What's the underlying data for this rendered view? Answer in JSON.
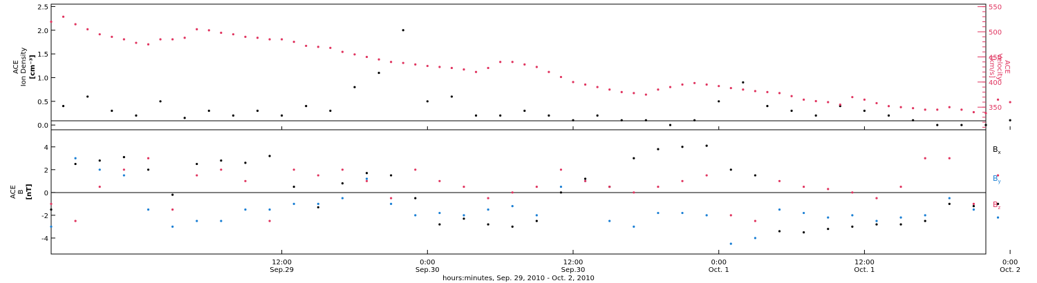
{
  "colors": {
    "black": "#000000",
    "velocity": "#e0345f",
    "by": "#1a7fd4",
    "bz": "#e0345f"
  },
  "shared": {
    "xlabel": "hours:minutes, Sep. 29, 2010 - Oct. 2, 2010",
    "x_range_hours": [
      -19,
      58
    ],
    "ticks": [
      {
        "hour": 0,
        "time": "12:00",
        "date": "Sep.29"
      },
      {
        "hour": 12,
        "time": "0:00",
        "date": "Sep.30"
      },
      {
        "hour": 24,
        "time": "12:00",
        "date": "Sep.30"
      },
      {
        "hour": 36,
        "time": "0:00",
        "date": "Oct. 1"
      },
      {
        "hour": 48,
        "time": "12:00",
        "date": "Oct. 1"
      },
      {
        "hour": 60,
        "time": "0:00",
        "date": "Oct. 2"
      }
    ]
  },
  "chart_data": [
    {
      "type": "scatter",
      "title": "",
      "ylabel_left": [
        "ACE",
        "Ion Density",
        "[cm⁻³]"
      ],
      "ylabel_right": [
        "ACE",
        "Velocity",
        "[km/s]"
      ],
      "ylim_left": [
        -0.1,
        2.55
      ],
      "ylim_right": [
        305,
        555
      ],
      "yticks_left": [
        "0.0",
        "0.5",
        "1.0",
        "1.5",
        "2.0",
        "2.5"
      ],
      "yticks_right": [
        "350",
        "400",
        "450",
        "500",
        "550"
      ],
      "series": [
        {
          "name": "",
          "axis": "left",
          "x": [
            -18,
            -16,
            -14,
            -12,
            -10,
            -8,
            -6,
            -4,
            -2,
            0,
            2,
            4,
            6,
            8,
            10,
            12,
            14,
            16,
            18,
            20,
            22,
            24,
            26,
            28,
            30,
            32,
            34,
            36,
            38,
            40,
            42,
            44,
            46,
            48,
            50,
            52,
            54,
            56,
            58,
            60
          ],
          "y": [
            0.4,
            0.6,
            0.3,
            0.2,
            0.5,
            0.15,
            0.3,
            0.2,
            0.3,
            0.2,
            0.4,
            0.3,
            0.8,
            1.1,
            2.0,
            0.5,
            0.6,
            0.2,
            0.2,
            0.3,
            0.2,
            0.1,
            0.2,
            0.1,
            0.1,
            0.0,
            0.1,
            0.5,
            0.9,
            0.4,
            0.3,
            0.2,
            0.4,
            0.3,
            0.2,
            0.1,
            0.0,
            0.0,
            0.0,
            0.1
          ]
        },
        {
          "name": "",
          "axis": "right",
          "x": [
            -19,
            -18,
            -17,
            -16,
            -15,
            -14,
            -13,
            -12,
            -11,
            -10,
            -9,
            -8,
            -7,
            -6,
            -5,
            -4,
            -3,
            -2,
            -1,
            0,
            1,
            2,
            3,
            4,
            5,
            6,
            7,
            8,
            9,
            10,
            11,
            12,
            13,
            14,
            15,
            16,
            17,
            18,
            19,
            20,
            21,
            22,
            23,
            24,
            25,
            26,
            27,
            28,
            29,
            30,
            31,
            32,
            33,
            34,
            35,
            36,
            37,
            38,
            39,
            40,
            41,
            42,
            43,
            44,
            45,
            46,
            47,
            48,
            49,
            50,
            51,
            52,
            53,
            54,
            55,
            56,
            57,
            58,
            59,
            60
          ],
          "y": [
            520,
            530,
            515,
            505,
            495,
            490,
            485,
            478,
            475,
            485,
            485,
            488,
            505,
            503,
            498,
            495,
            490,
            488,
            485,
            485,
            480,
            472,
            470,
            468,
            460,
            455,
            450,
            445,
            440,
            438,
            435,
            432,
            430,
            428,
            425,
            420,
            428,
            440,
            440,
            435,
            430,
            420,
            410,
            400,
            395,
            390,
            385,
            380,
            378,
            375,
            385,
            390,
            395,
            398,
            395,
            392,
            388,
            385,
            382,
            380,
            378,
            372,
            365,
            362,
            360,
            355,
            370,
            365,
            358,
            352,
            350,
            348,
            345,
            345,
            350,
            345,
            340,
            338,
            365,
            360
          ]
        }
      ]
    },
    {
      "type": "scatter",
      "title": "",
      "ylabel": [
        "ACE",
        "B",
        "[nT]"
      ],
      "ylim": [
        -5.4,
        5.5
      ],
      "yticks": [
        "-4",
        "-2",
        "0",
        "2",
        "4"
      ],
      "series": [
        {
          "name": "Bx",
          "x": [
            -19,
            -17,
            -15,
            -13,
            -11,
            -9,
            -7,
            -5,
            -3,
            -1,
            1,
            3,
            5,
            7,
            9,
            11,
            13,
            15,
            17,
            19,
            21,
            23,
            25,
            27,
            29,
            31,
            33,
            35,
            37,
            39,
            41,
            43,
            45,
            47,
            49,
            51,
            53,
            55,
            57,
            59
          ],
          "y": [
            -1.5,
            2.5,
            2.8,
            3.1,
            2.0,
            -0.2,
            2.5,
            2.8,
            2.6,
            3.2,
            0.5,
            -1.3,
            0.8,
            1.7,
            1.5,
            -0.5,
            -2.8,
            -2.3,
            -2.8,
            -3.0,
            -2.5,
            0.0,
            1.2,
            0.5,
            3.0,
            3.8,
            4.0,
            4.1,
            2.0,
            1.5,
            -3.4,
            -3.5,
            -3.2,
            -3.0,
            -2.8,
            -2.8,
            -2.5,
            -1.0,
            -1.2,
            -1.0
          ]
        },
        {
          "name": "By",
          "x": [
            -19,
            -17,
            -15,
            -13,
            -11,
            -9,
            -7,
            -5,
            -3,
            -1,
            1,
            3,
            5,
            7,
            9,
            11,
            13,
            15,
            17,
            19,
            21,
            23,
            25,
            27,
            29,
            31,
            33,
            35,
            37,
            39,
            41,
            43,
            45,
            47,
            49,
            51,
            53,
            55,
            57,
            59
          ],
          "y": [
            -3.0,
            3.0,
            2.0,
            1.5,
            -1.5,
            -3.0,
            -2.5,
            -2.5,
            -1.5,
            -1.5,
            -1.0,
            -1.0,
            -0.5,
            1.2,
            -1.0,
            -2.0,
            -1.8,
            -2.0,
            -1.5,
            -1.2,
            -2.0,
            0.5,
            1.0,
            -2.5,
            -3.0,
            -1.8,
            -1.8,
            -2.0,
            -4.5,
            -4.0,
            -1.5,
            -1.8,
            -2.2,
            -2.0,
            -2.5,
            -2.2,
            -2.0,
            -0.5,
            -1.5,
            -2.2
          ]
        },
        {
          "name": "Bz",
          "x": [
            -19,
            -17,
            -15,
            -13,
            -11,
            -9,
            -7,
            -5,
            -3,
            -1,
            1,
            3,
            5,
            7,
            9,
            11,
            13,
            15,
            17,
            19,
            21,
            23,
            25,
            27,
            29,
            31,
            33,
            35,
            37,
            39,
            41,
            43,
            45,
            47,
            49,
            51,
            53,
            55,
            57,
            59
          ],
          "y": [
            -1.0,
            -2.5,
            0.5,
            2.0,
            3.0,
            -1.5,
            1.5,
            2.0,
            1.0,
            -2.5,
            2.0,
            1.5,
            2.0,
            1.0,
            -0.5,
            2.0,
            1.0,
            0.5,
            -0.5,
            0.0,
            0.5,
            2.0,
            1.0,
            0.5,
            0.0,
            0.5,
            1.0,
            1.5,
            -2.0,
            -2.5,
            1.0,
            0.5,
            0.3,
            0.0,
            -0.5,
            0.5,
            3.0,
            3.0,
            -1.0,
            1.5
          ]
        }
      ]
    }
  ]
}
